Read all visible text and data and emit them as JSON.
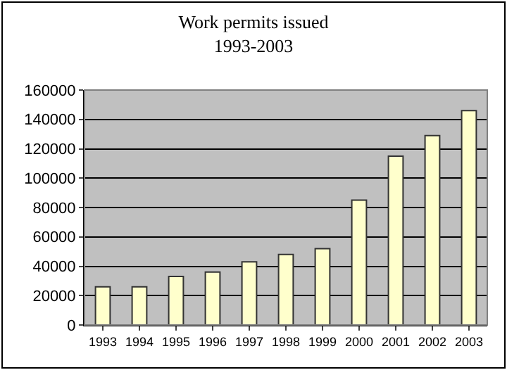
{
  "chart_data": {
    "type": "bar",
    "title": "Work permits issued\n1993-2003",
    "categories": [
      "1993",
      "1994",
      "1995",
      "1996",
      "1997",
      "1998",
      "1999",
      "2000",
      "2001",
      "2002",
      "2003"
    ],
    "values": [
      26000,
      26000,
      33000,
      36000,
      43000,
      48000,
      52000,
      85000,
      115000,
      129000,
      146000
    ],
    "color": "#ffffcc",
    "ylim": [
      0,
      160000
    ],
    "yticks": [
      0,
      20000,
      40000,
      60000,
      80000,
      100000,
      120000,
      140000,
      160000
    ],
    "grid": "y"
  }
}
